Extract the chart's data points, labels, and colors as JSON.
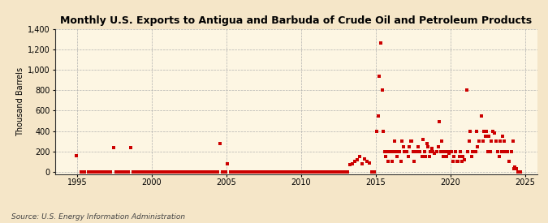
{
  "title": "Monthly U.S. Exports to Antigua and Barbuda of Crude Oil and Petroleum Products",
  "ylabel": "Thousand Barrels",
  "source": "Source: U.S. Energy Information Administration",
  "background_color": "#f5e6c8",
  "plot_background_color": "#fdf6e3",
  "marker_color": "#cc0000",
  "marker_size": 5,
  "xlim": [
    1993.5,
    2025.8
  ],
  "ylim": [
    -20,
    1400
  ],
  "yticks": [
    0,
    200,
    400,
    600,
    800,
    1000,
    1200,
    1400
  ],
  "xticks": [
    1995,
    2000,
    2005,
    2010,
    2015,
    2020,
    2025
  ],
  "data_points": [
    [
      1994.92,
      160
    ],
    [
      1995.25,
      3
    ],
    [
      1995.5,
      3
    ],
    [
      1995.75,
      3
    ],
    [
      1995.92,
      3
    ],
    [
      1996.08,
      3
    ],
    [
      1996.25,
      3
    ],
    [
      1996.42,
      3
    ],
    [
      1996.58,
      3
    ],
    [
      1996.75,
      3
    ],
    [
      1996.92,
      3
    ],
    [
      1997.08,
      3
    ],
    [
      1997.25,
      3
    ],
    [
      1997.42,
      240
    ],
    [
      1997.58,
      3
    ],
    [
      1997.75,
      3
    ],
    [
      1997.92,
      3
    ],
    [
      1998.08,
      3
    ],
    [
      1998.25,
      3
    ],
    [
      1998.42,
      3
    ],
    [
      1998.58,
      240
    ],
    [
      1998.75,
      3
    ],
    [
      1998.92,
      3
    ],
    [
      1999.08,
      3
    ],
    [
      1999.25,
      3
    ],
    [
      1999.42,
      3
    ],
    [
      1999.58,
      3
    ],
    [
      1999.75,
      3
    ],
    [
      1999.92,
      3
    ],
    [
      2000.08,
      3
    ],
    [
      2000.25,
      3
    ],
    [
      2000.42,
      3
    ],
    [
      2000.58,
      3
    ],
    [
      2000.75,
      3
    ],
    [
      2000.92,
      3
    ],
    [
      2001.08,
      3
    ],
    [
      2001.25,
      3
    ],
    [
      2001.42,
      3
    ],
    [
      2001.58,
      3
    ],
    [
      2001.75,
      3
    ],
    [
      2001.92,
      3
    ],
    [
      2002.08,
      3
    ],
    [
      2002.25,
      3
    ],
    [
      2002.42,
      3
    ],
    [
      2002.58,
      3
    ],
    [
      2002.75,
      3
    ],
    [
      2002.92,
      3
    ],
    [
      2003.08,
      3
    ],
    [
      2003.25,
      3
    ],
    [
      2003.42,
      3
    ],
    [
      2003.58,
      3
    ],
    [
      2003.75,
      3
    ],
    [
      2003.92,
      3
    ],
    [
      2004.08,
      3
    ],
    [
      2004.25,
      3
    ],
    [
      2004.42,
      3
    ],
    [
      2004.58,
      280
    ],
    [
      2004.75,
      3
    ],
    [
      2004.92,
      3
    ],
    [
      2005.08,
      80
    ],
    [
      2005.25,
      3
    ],
    [
      2005.42,
      3
    ],
    [
      2005.58,
      3
    ],
    [
      2005.75,
      3
    ],
    [
      2005.92,
      3
    ],
    [
      2006.08,
      3
    ],
    [
      2006.25,
      3
    ],
    [
      2006.42,
      3
    ],
    [
      2006.58,
      3
    ],
    [
      2006.75,
      3
    ],
    [
      2006.92,
      3
    ],
    [
      2007.08,
      3
    ],
    [
      2007.25,
      3
    ],
    [
      2007.42,
      3
    ],
    [
      2007.58,
      3
    ],
    [
      2007.75,
      3
    ],
    [
      2007.92,
      3
    ],
    [
      2008.08,
      3
    ],
    [
      2008.25,
      3
    ],
    [
      2008.42,
      3
    ],
    [
      2008.58,
      3
    ],
    [
      2008.75,
      3
    ],
    [
      2008.92,
      3
    ],
    [
      2009.08,
      3
    ],
    [
      2009.25,
      3
    ],
    [
      2009.42,
      3
    ],
    [
      2009.58,
      3
    ],
    [
      2009.75,
      3
    ],
    [
      2009.92,
      3
    ],
    [
      2010.08,
      3
    ],
    [
      2010.25,
      3
    ],
    [
      2010.42,
      3
    ],
    [
      2010.58,
      3
    ],
    [
      2010.75,
      3
    ],
    [
      2010.92,
      3
    ],
    [
      2011.08,
      3
    ],
    [
      2011.25,
      3
    ],
    [
      2011.42,
      3
    ],
    [
      2011.58,
      3
    ],
    [
      2011.75,
      3
    ],
    [
      2011.92,
      3
    ],
    [
      2012.08,
      3
    ],
    [
      2012.25,
      3
    ],
    [
      2012.42,
      3
    ],
    [
      2012.58,
      3
    ],
    [
      2012.75,
      3
    ],
    [
      2012.92,
      3
    ],
    [
      2013.08,
      3
    ],
    [
      2013.25,
      70
    ],
    [
      2013.42,
      80
    ],
    [
      2013.58,
      100
    ],
    [
      2013.75,
      120
    ],
    [
      2013.92,
      150
    ],
    [
      2014.08,
      80
    ],
    [
      2014.25,
      130
    ],
    [
      2014.42,
      100
    ],
    [
      2014.58,
      90
    ],
    [
      2014.75,
      3
    ],
    [
      2014.92,
      3
    ],
    [
      2015.08,
      400
    ],
    [
      2015.17,
      550
    ],
    [
      2015.25,
      940
    ],
    [
      2015.33,
      1260
    ],
    [
      2015.42,
      800
    ],
    [
      2015.5,
      400
    ],
    [
      2015.58,
      200
    ],
    [
      2015.67,
      150
    ],
    [
      2015.75,
      200
    ],
    [
      2015.83,
      100
    ],
    [
      2015.92,
      200
    ],
    [
      2016.08,
      100
    ],
    [
      2016.17,
      200
    ],
    [
      2016.25,
      300
    ],
    [
      2016.33,
      200
    ],
    [
      2016.42,
      150
    ],
    [
      2016.5,
      200
    ],
    [
      2016.58,
      200
    ],
    [
      2016.67,
      100
    ],
    [
      2016.75,
      300
    ],
    [
      2016.83,
      250
    ],
    [
      2016.92,
      200
    ],
    [
      2017.08,
      200
    ],
    [
      2017.17,
      150
    ],
    [
      2017.25,
      250
    ],
    [
      2017.33,
      300
    ],
    [
      2017.42,
      300
    ],
    [
      2017.5,
      200
    ],
    [
      2017.58,
      100
    ],
    [
      2017.67,
      200
    ],
    [
      2017.75,
      200
    ],
    [
      2017.83,
      250
    ],
    [
      2017.92,
      200
    ],
    [
      2018.08,
      150
    ],
    [
      2018.17,
      320
    ],
    [
      2018.25,
      200
    ],
    [
      2018.33,
      150
    ],
    [
      2018.42,
      280
    ],
    [
      2018.5,
      250
    ],
    [
      2018.58,
      150
    ],
    [
      2018.67,
      200
    ],
    [
      2018.75,
      230
    ],
    [
      2018.83,
      200
    ],
    [
      2018.92,
      180
    ],
    [
      2019.08,
      200
    ],
    [
      2019.17,
      250
    ],
    [
      2019.25,
      490
    ],
    [
      2019.33,
      200
    ],
    [
      2019.42,
      300
    ],
    [
      2019.5,
      150
    ],
    [
      2019.58,
      200
    ],
    [
      2019.67,
      200
    ],
    [
      2019.75,
      150
    ],
    [
      2019.83,
      200
    ],
    [
      2019.92,
      180
    ],
    [
      2020.08,
      200
    ],
    [
      2020.17,
      100
    ],
    [
      2020.25,
      150
    ],
    [
      2020.33,
      200
    ],
    [
      2020.42,
      100
    ],
    [
      2020.5,
      100
    ],
    [
      2020.58,
      150
    ],
    [
      2020.67,
      200
    ],
    [
      2020.75,
      100
    ],
    [
      2020.83,
      150
    ],
    [
      2020.92,
      120
    ],
    [
      2021.08,
      800
    ],
    [
      2021.17,
      200
    ],
    [
      2021.25,
      300
    ],
    [
      2021.33,
      400
    ],
    [
      2021.42,
      150
    ],
    [
      2021.5,
      200
    ],
    [
      2021.58,
      200
    ],
    [
      2021.67,
      200
    ],
    [
      2021.75,
      400
    ],
    [
      2021.83,
      250
    ],
    [
      2021.92,
      300
    ],
    [
      2022.08,
      550
    ],
    [
      2022.17,
      300
    ],
    [
      2022.25,
      400
    ],
    [
      2022.33,
      350
    ],
    [
      2022.42,
      400
    ],
    [
      2022.5,
      200
    ],
    [
      2022.58,
      350
    ],
    [
      2022.67,
      200
    ],
    [
      2022.75,
      300
    ],
    [
      2022.83,
      400
    ],
    [
      2022.92,
      380
    ],
    [
      2023.08,
      300
    ],
    [
      2023.17,
      200
    ],
    [
      2023.25,
      150
    ],
    [
      2023.33,
      300
    ],
    [
      2023.42,
      200
    ],
    [
      2023.5,
      350
    ],
    [
      2023.58,
      300
    ],
    [
      2023.67,
      200
    ],
    [
      2023.75,
      200
    ],
    [
      2023.83,
      200
    ],
    [
      2023.92,
      100
    ],
    [
      2024.08,
      200
    ],
    [
      2024.17,
      300
    ],
    [
      2024.25,
      30
    ],
    [
      2024.33,
      50
    ],
    [
      2024.42,
      30
    ],
    [
      2024.5,
      3
    ],
    [
      2024.58,
      3
    ],
    [
      2024.67,
      3
    ]
  ]
}
